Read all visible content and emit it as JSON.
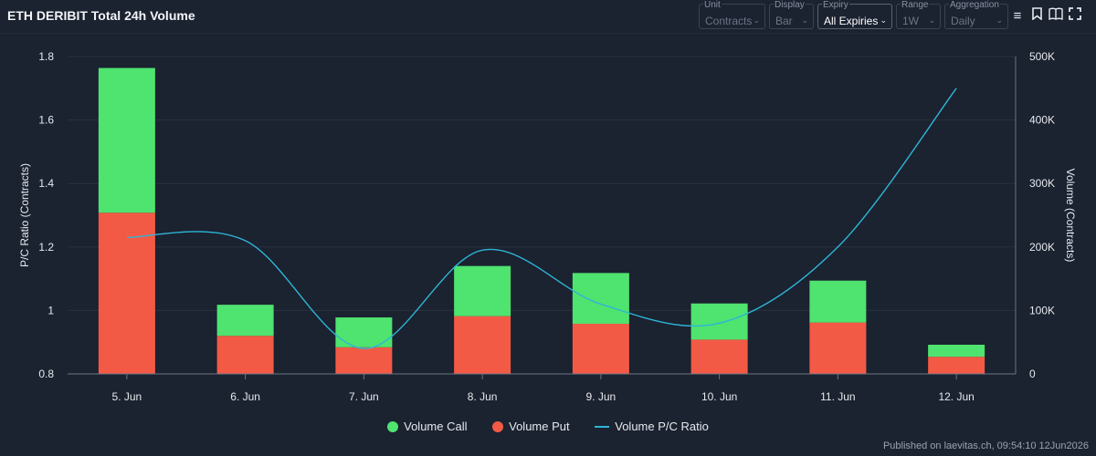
{
  "title": "ETH DERIBIT Total 24h Volume",
  "controls": [
    {
      "label": "Unit",
      "value": "Contracts",
      "active": false
    },
    {
      "label": "Display",
      "value": "Bar",
      "active": false
    },
    {
      "label": "Expiry",
      "value": "All Expiries",
      "active": true
    },
    {
      "label": "Range",
      "value": "1W",
      "active": false
    },
    {
      "label": "Aggregation",
      "value": "Daily",
      "active": false
    }
  ],
  "toolbar_icons": [
    "menu-icon",
    "bookmark-icon",
    "book-icon",
    "fullscreen-icon"
  ],
  "chart_data": {
    "type": "bar",
    "stacked": true,
    "categories": [
      "5. Jun",
      "6. Jun",
      "7. Jun",
      "8. Jun",
      "9. Jun",
      "10. Jun",
      "11. Jun",
      "12. Jun"
    ],
    "series": [
      {
        "name": "Volume Call",
        "axis": "right",
        "color": "#4fe36f",
        "values": [
          228000,
          49000,
          47000,
          79000,
          80000,
          57000,
          66000,
          19000
        ]
      },
      {
        "name": "Volume Put",
        "axis": "right",
        "color": "#f35a45",
        "values": [
          254000,
          60000,
          42000,
          91000,
          79000,
          54000,
          81000,
          27000
        ]
      },
      {
        "name": "Volume P/C Ratio",
        "axis": "left",
        "type": "line",
        "color": "#2eb5d6",
        "values": [
          1.23,
          1.22,
          0.88,
          1.19,
          1.02,
          0.96,
          1.2,
          1.7
        ]
      }
    ],
    "ylabel_left": "P/C Ratio (Contracts)",
    "ylabel_right": "Volume (Contracts)",
    "ylim_left": [
      0.8,
      1.8
    ],
    "ylim_right": [
      0,
      500000
    ],
    "yticks_left": [
      "0.8",
      "1",
      "1.2",
      "1.4",
      "1.6",
      "1.8"
    ],
    "yticks_right": [
      "0",
      "100K",
      "200K",
      "300K",
      "400K",
      "500K"
    ],
    "grid": true,
    "legend_position": "bottom"
  },
  "published": "Published on laevitas.ch, 09:54:10 12Jun2026"
}
